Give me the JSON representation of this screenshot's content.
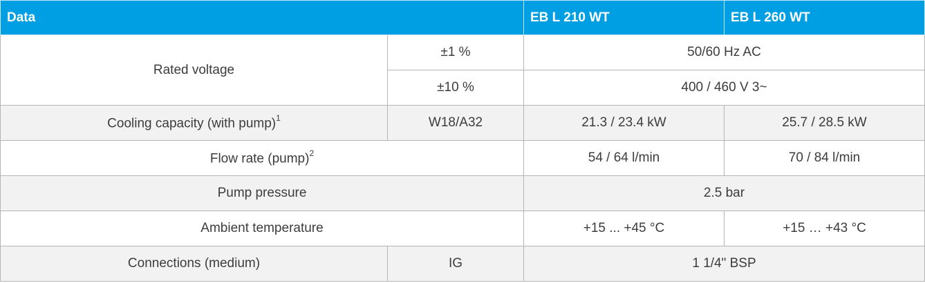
{
  "table": {
    "header": {
      "data": "Data",
      "model_a": "EB L 210 WT",
      "model_b": "EB L 260 WT"
    },
    "rows": {
      "rated_voltage": {
        "label": "Rated voltage",
        "sub1": {
          "tolerance": "±1 %",
          "value": "50/60 Hz AC"
        },
        "sub2": {
          "tolerance": "±10 %",
          "value": "400 / 460 V 3~"
        }
      },
      "cooling_capacity": {
        "label": "Cooling capacity (with pump)",
        "footnote": "1",
        "condition": "W18/A32",
        "value_a": "21.3 / 23.4 kW",
        "value_b": "25.7 / 28.5 kW"
      },
      "flow_rate": {
        "label": "Flow rate (pump)",
        "footnote": "2",
        "value_a": "54 / 64 l/min",
        "value_b": "70 / 84 l/min"
      },
      "pump_pressure": {
        "label": "Pump pressure",
        "value": "2.5 bar"
      },
      "ambient_temperature": {
        "label": "Ambient temperature",
        "value_a": "+15 ... +45 °C",
        "value_b": "+15 … +43 °C"
      },
      "connections": {
        "label": "Connections (medium)",
        "condition": "IG",
        "value": "1 1/4\" BSP"
      }
    }
  },
  "colors": {
    "header_background": "#009fe3",
    "header_text": "#ffffff",
    "shaded_row": "#f2f2f2",
    "border": "#b4b4b4",
    "body_text": "#3c3c3c"
  }
}
